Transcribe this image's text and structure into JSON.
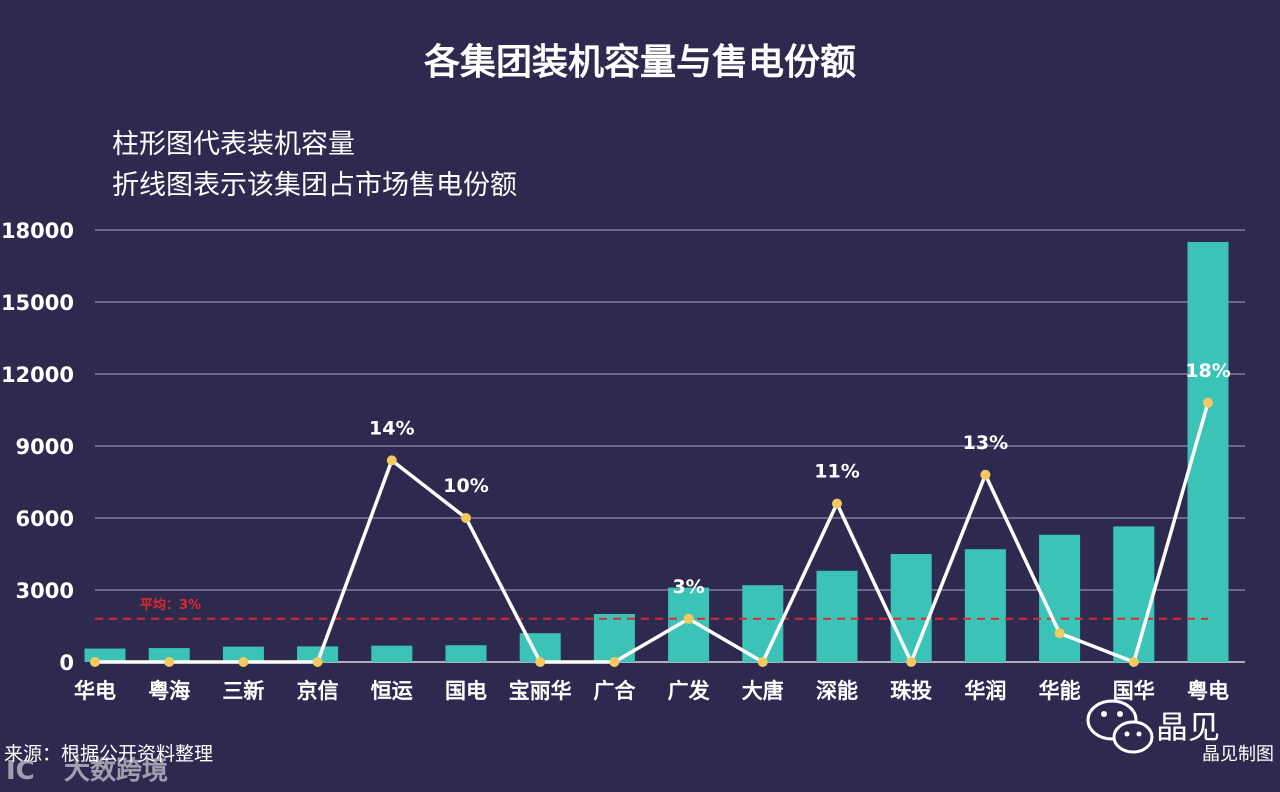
{
  "chart_data": {
    "type": "bar",
    "title": "各集团装机容量与售电份额",
    "subtitle_lines": [
      "柱形图代表装机容量",
      "折线图表示该集团占市场售电份额"
    ],
    "categories": [
      "华电",
      "粤海",
      "三新",
      "京信",
      "恒运",
      "国电",
      "宝丽华",
      "广合",
      "广发",
      "大唐",
      "深能",
      "珠投",
      "华润",
      "华能",
      "国华",
      "粤电"
    ],
    "series": [
      {
        "type": "bar",
        "color": "#3cc3b8",
        "values": [
          560,
          580,
          640,
          650,
          680,
          700,
          1200,
          2000,
          3100,
          3200,
          3800,
          4500,
          4700,
          5300,
          5650,
          17500
        ]
      },
      {
        "type": "line",
        "color": "#ffffff",
        "marker_color": "#f3c960",
        "values": [
          0,
          0,
          0,
          0,
          8400,
          6000,
          0,
          0,
          1800,
          0,
          6600,
          0,
          7800,
          1200,
          0,
          10800
        ],
        "point_labels": [
          "",
          "",
          "",
          "",
          "14%",
          "10%",
          "",
          "",
          "3%",
          "",
          "11%",
          "",
          "13%",
          "",
          "",
          "18%"
        ]
      }
    ],
    "average_line": {
      "value": 1800,
      "label": "平均：3%",
      "color": "#e02a2a"
    },
    "y_ticks": [
      "0",
      "3000",
      "6000",
      "9000",
      "12000",
      "15000",
      "18000"
    ],
    "ylim": [
      0,
      18000
    ],
    "grid": true,
    "legend": "none"
  },
  "footer": {
    "source": "来源：根据公开资料整理",
    "brand": "晶见",
    "credit": "晶见制图",
    "watermark": "大数跨境",
    "watermark_logo": "IC"
  }
}
